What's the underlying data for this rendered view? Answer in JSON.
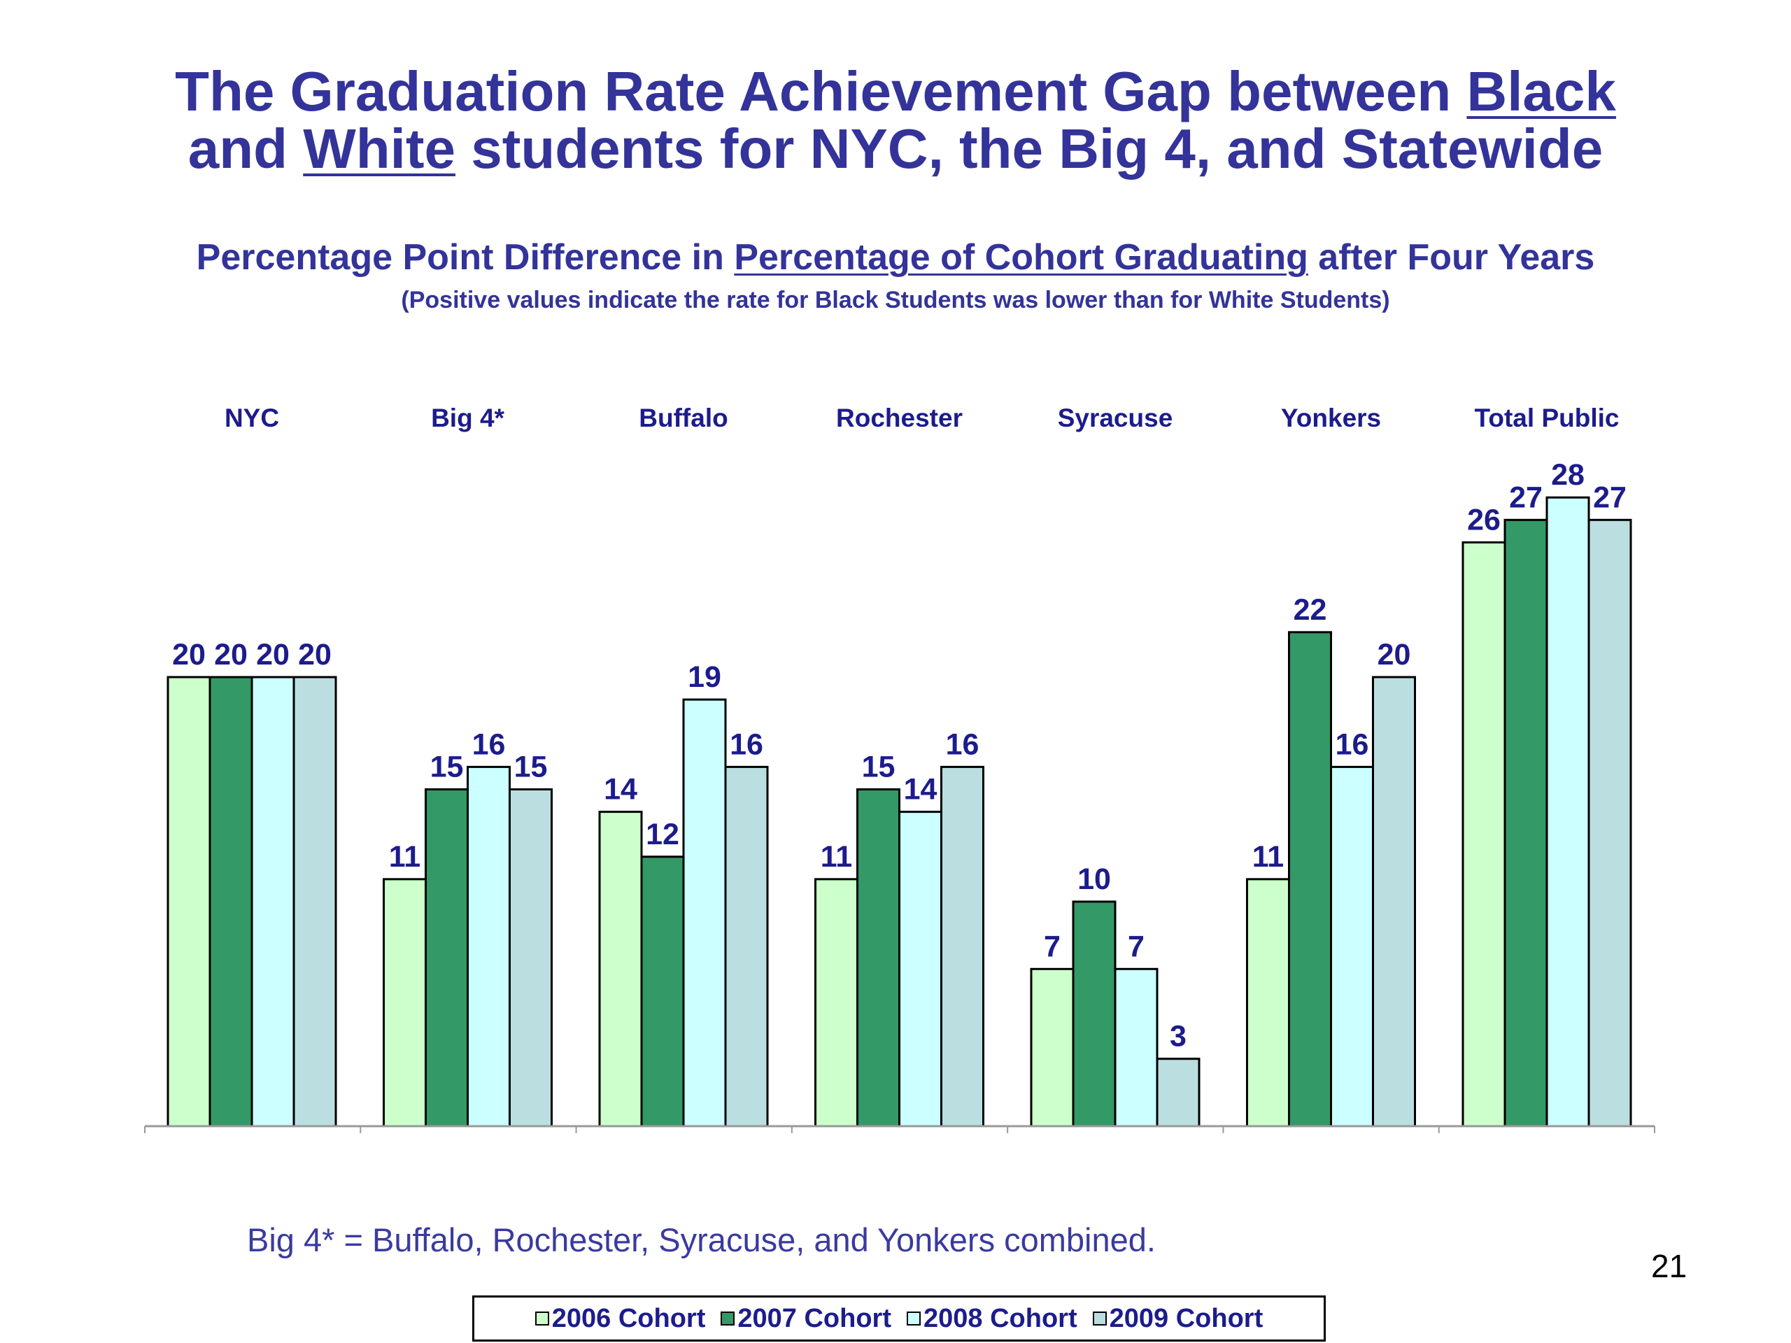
{
  "title": {
    "line1_prefix": "The Graduation Rate Achievement Gap between ",
    "line1_underlined": "Black",
    "line2_prefix": "and ",
    "line2_underlined": "White",
    "line2_suffix": " students for NYC, the Big 4, and Statewide"
  },
  "subtitle": {
    "prefix": "Percentage Point Difference in ",
    "underlined": "Percentage of Cohort Graduating",
    "suffix": " after Four Years"
  },
  "note": "(Positive values indicate the rate for Black Students was lower than for White Students)",
  "footnote": "Big 4* = Buffalo, Rochester, Syracuse, and Yonkers combined.",
  "page_number": "21",
  "colors": {
    "title": "#33339a",
    "labels": "#1c1c8c",
    "2006": "#ccffcc",
    "2007": "#339966",
    "2008": "#ccffff",
    "2009": "#bbdfe0"
  },
  "chart_data": {
    "type": "bar",
    "categories": [
      "NYC",
      "Big 4*",
      "Buffalo",
      "Rochester",
      "Syracuse",
      "Yonkers",
      "Total Public"
    ],
    "series": [
      {
        "name": "2006 Cohort",
        "values": [
          20,
          11,
          14,
          11,
          7,
          11,
          26
        ]
      },
      {
        "name": "2007 Cohort",
        "values": [
          20,
          15,
          12,
          15,
          10,
          22,
          27
        ]
      },
      {
        "name": "2008 Cohort",
        "values": [
          20,
          16,
          19,
          14,
          7,
          16,
          28
        ]
      },
      {
        "name": "2009 Cohort",
        "values": [
          20,
          15,
          16,
          16,
          3,
          20,
          27
        ]
      }
    ],
    "ylim": [
      0,
      30
    ],
    "grid": false,
    "data_labels": true,
    "category_labels_position": "top",
    "legend_position": "bottom"
  }
}
